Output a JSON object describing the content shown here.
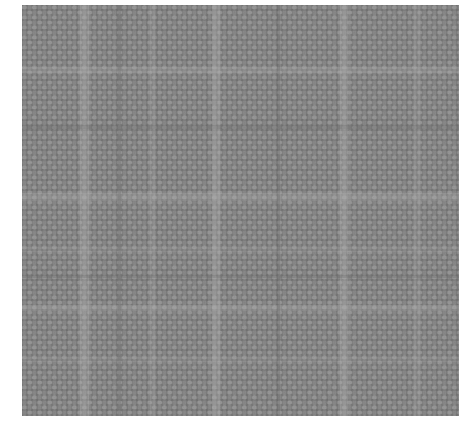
{
  "image": {
    "subject": "woven-burlap-texture",
    "colors": {
      "background": "#ffffff",
      "base": "#8a8a8a",
      "thread_dark": "#6f6f6f",
      "thread_light": "#a8a8a8",
      "highlight": "#b8b8b8"
    }
  }
}
